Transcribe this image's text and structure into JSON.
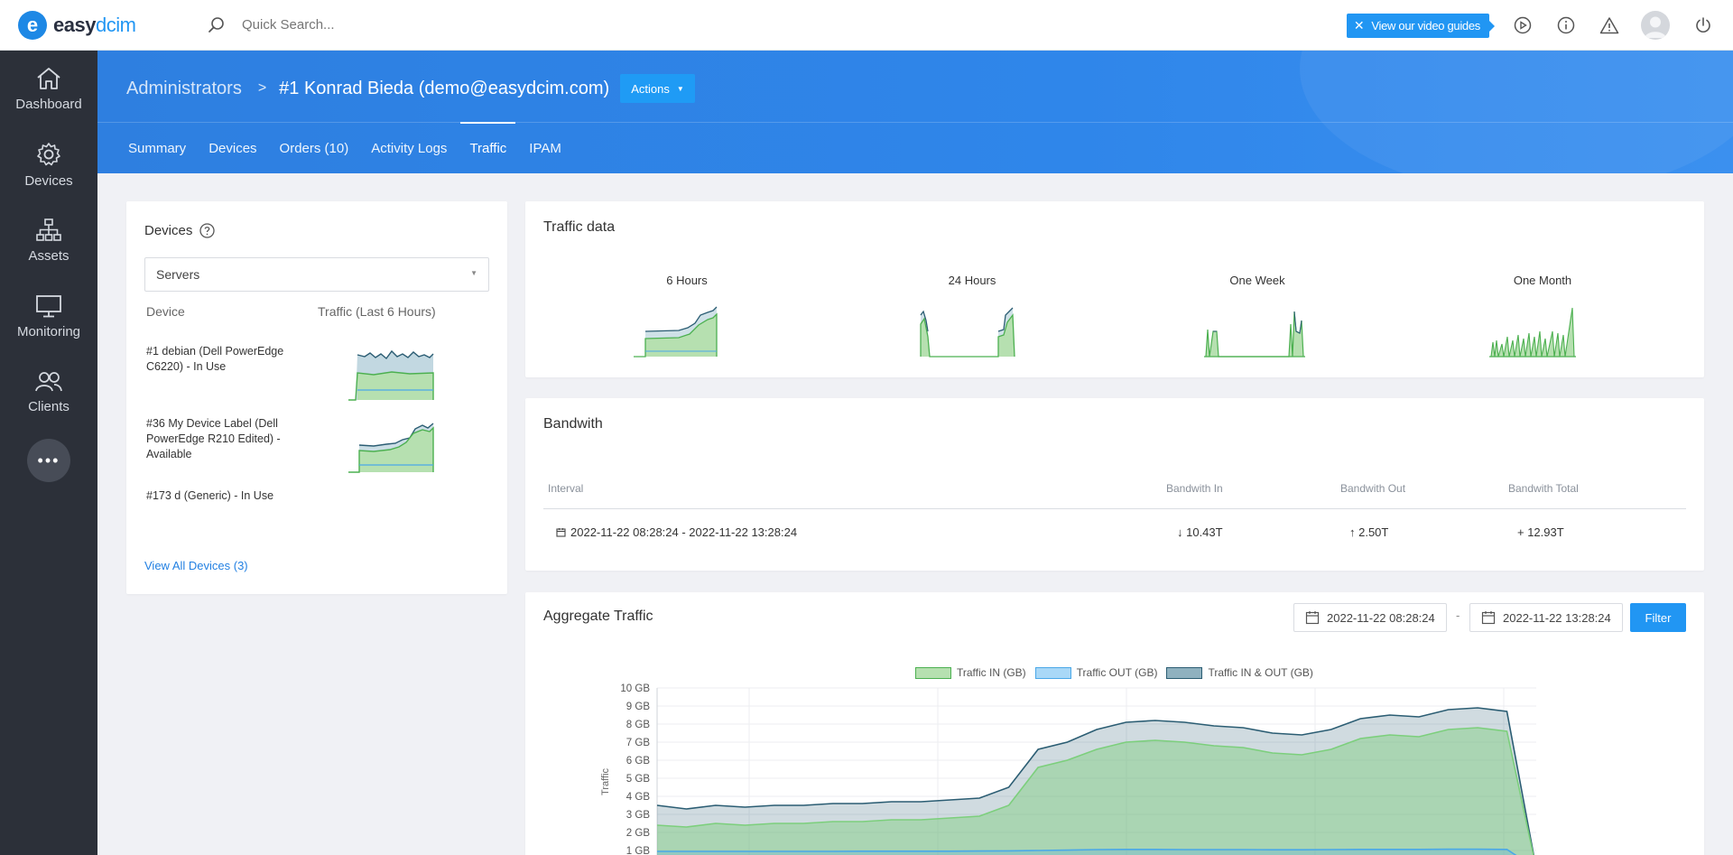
{
  "brand": {
    "mark": "e",
    "name_a": "easy",
    "name_b": "dcim"
  },
  "search": {
    "placeholder": "Quick Search..."
  },
  "topbar": {
    "video_guides": "View our video guides"
  },
  "sidebar": {
    "items": [
      {
        "label": "Dashboard",
        "icon": "home-icon"
      },
      {
        "label": "Devices",
        "icon": "gear-icon"
      },
      {
        "label": "Assets",
        "icon": "sitemap-icon"
      },
      {
        "label": "Monitoring",
        "icon": "monitor-icon"
      },
      {
        "label": "Clients",
        "icon": "users-icon"
      }
    ],
    "more": "•••"
  },
  "header": {
    "crumb_parent": "Administrators",
    "crumb_current": "#1 Konrad Bieda (demo@easydcim.com)",
    "actions_label": "Actions",
    "tabs": [
      "Summary",
      "Devices",
      "Orders (10)",
      "Activity Logs",
      "Traffic",
      "IPAM"
    ],
    "active_tab": "Traffic"
  },
  "devices_card": {
    "title": "Devices",
    "select_value": "Servers",
    "col_device": "Device",
    "col_traffic": "Traffic (Last 6 Hours)",
    "rows": [
      {
        "label": "#1 debian (Dell PowerEdge C6220) - In Use"
      },
      {
        "label": "#36 My Device Label (Dell PowerEdge R210 Edited) - Available"
      },
      {
        "label": "#173 d (Generic) - In Use"
      }
    ],
    "view_all": "View All Devices (3)"
  },
  "traffic_data": {
    "title": "Traffic data",
    "periods": [
      "6 Hours",
      "24 Hours",
      "One Week",
      "One Month"
    ]
  },
  "bandwidth": {
    "title": "Bandwith",
    "headers": {
      "interval": "Interval",
      "in": "Bandwith In",
      "out": "Bandwith Out",
      "total": "Bandwith Total"
    },
    "row": {
      "interval": "2022-11-22 08:28:24 - 2022-11-22 13:28:24",
      "in": "↓ 10.43T",
      "out": "↑ 2.50T",
      "total": "+ 12.93T"
    }
  },
  "aggregate": {
    "title": "Aggregate Traffic",
    "date_from": "2022-11-22 08:28:24",
    "date_sep": "-",
    "date_to": "2022-11-22 13:28:24",
    "filter_label": "Filter"
  },
  "chart_data": {
    "type": "area",
    "ylabel": "Traffic",
    "yticks": [
      "10 GB",
      "9 GB",
      "8 GB",
      "7 GB",
      "6 GB",
      "5 GB",
      "4 GB",
      "3 GB",
      "2 GB",
      "1 GB"
    ],
    "ylim": [
      0,
      10
    ],
    "legend_position": "top",
    "series": [
      {
        "name": "Traffic IN (GB)",
        "color": "#7ccf7c",
        "values": [
          2.4,
          2.3,
          2.5,
          2.4,
          2.5,
          2.5,
          2.6,
          2.6,
          2.7,
          2.7,
          2.8,
          2.9,
          3.5,
          5.6,
          6.0,
          6.6,
          7.0,
          7.1,
          7.0,
          6.8,
          6.7,
          6.4,
          6.3,
          6.6,
          7.2,
          7.4,
          7.3,
          7.7,
          7.8,
          7.6,
          0.0
        ]
      },
      {
        "name": "Traffic OUT (GB)",
        "color": "#4aa8e8",
        "values": [
          0.95,
          0.95,
          0.95,
          0.95,
          0.95,
          0.95,
          0.95,
          0.96,
          0.96,
          0.96,
          0.96,
          0.97,
          0.98,
          1.0,
          1.02,
          1.05,
          1.06,
          1.06,
          1.05,
          1.05,
          1.05,
          1.04,
          1.04,
          1.05,
          1.06,
          1.06,
          1.06,
          1.07,
          1.07,
          1.06,
          0.0
        ]
      },
      {
        "name": "Traffic IN & OUT (GB)",
        "color": "#2b5d73",
        "values": [
          3.5,
          3.3,
          3.5,
          3.4,
          3.5,
          3.5,
          3.6,
          3.6,
          3.7,
          3.7,
          3.8,
          3.9,
          4.5,
          6.6,
          7.0,
          7.7,
          8.1,
          8.2,
          8.1,
          7.9,
          7.8,
          7.5,
          7.4,
          7.7,
          8.3,
          8.5,
          8.4,
          8.8,
          8.9,
          8.7,
          0.0
        ]
      }
    ]
  }
}
